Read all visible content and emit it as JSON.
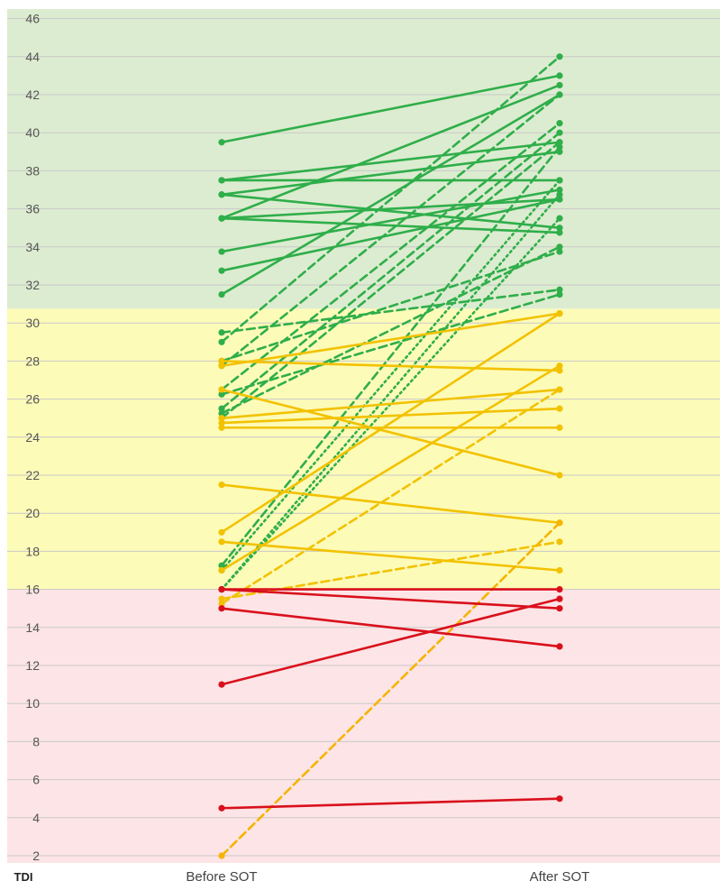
{
  "chart_data": {
    "type": "line",
    "xlabel": "TDI",
    "categories": [
      "Before SOT",
      "After SOT"
    ],
    "ylim": [
      2,
      46
    ],
    "yticks": [
      2,
      4,
      6,
      8,
      10,
      12,
      14,
      16,
      18,
      20,
      22,
      24,
      26,
      28,
      30,
      32,
      34,
      36,
      38,
      40,
      42,
      44,
      46
    ],
    "grid": true,
    "bands": [
      {
        "from": 1.5,
        "to": 16,
        "color": "#fde4e6"
      },
      {
        "from": 16,
        "to": 30.75,
        "color": "#fdfbb8"
      },
      {
        "from": 30.75,
        "to": 46.5,
        "color": "#dcecd0"
      }
    ],
    "colors": {
      "green": "#2fae4a",
      "yellow": "#f2c200",
      "red": "#d9101c",
      "orange": "#f5b400"
    },
    "series": [
      {
        "values": [
          39.5,
          43
        ],
        "color": "green",
        "style": "solid"
      },
      {
        "values": [
          37.5,
          39.5
        ],
        "color": "green",
        "style": "solid"
      },
      {
        "values": [
          37.5,
          37.5
        ],
        "color": "green",
        "style": "solid"
      },
      {
        "values": [
          36.75,
          35
        ],
        "color": "green",
        "style": "solid"
      },
      {
        "values": [
          36.75,
          39
        ],
        "color": "green",
        "style": "solid"
      },
      {
        "values": [
          35.5,
          42.5
        ],
        "color": "green",
        "style": "solid"
      },
      {
        "values": [
          35.5,
          36.5
        ],
        "color": "green",
        "style": "solid"
      },
      {
        "values": [
          35.5,
          34.75
        ],
        "color": "green",
        "style": "solid"
      },
      {
        "values": [
          33.75,
          37
        ],
        "color": "green",
        "style": "solid"
      },
      {
        "values": [
          32.75,
          36.5
        ],
        "color": "green",
        "style": "solid"
      },
      {
        "values": [
          31.5,
          42
        ],
        "color": "green",
        "style": "solid"
      },
      {
        "values": [
          29.5,
          31.75
        ],
        "color": "green",
        "style": "dashed"
      },
      {
        "values": [
          29,
          44
        ],
        "color": "green",
        "style": "dashed"
      },
      {
        "values": [
          28,
          33.75
        ],
        "color": "green",
        "style": "dashed"
      },
      {
        "values": [
          27.75,
          42
        ],
        "color": "green",
        "style": "dashed"
      },
      {
        "values": [
          26.5,
          40.5
        ],
        "color": "green",
        "style": "dashed"
      },
      {
        "values": [
          26.25,
          31.5
        ],
        "color": "green",
        "style": "dashed"
      },
      {
        "values": [
          25.5,
          40
        ],
        "color": "green",
        "style": "dashed"
      },
      {
        "values": [
          25.25,
          34
        ],
        "color": "green",
        "style": "dashed"
      },
      {
        "values": [
          25,
          39.5
        ],
        "color": "green",
        "style": "dashed"
      },
      {
        "values": [
          17.25,
          39.25
        ],
        "color": "green",
        "style": "dashed"
      },
      {
        "values": [
          17,
          37.5
        ],
        "color": "green",
        "style": "dotted"
      },
      {
        "values": [
          16,
          36.75
        ],
        "color": "green",
        "style": "dotted"
      },
      {
        "values": [
          16,
          35.5
        ],
        "color": "green",
        "style": "dotted"
      },
      {
        "values": [
          28,
          27.5
        ],
        "color": "yellow",
        "style": "solid"
      },
      {
        "values": [
          27.75,
          30.5
        ],
        "color": "yellow",
        "style": "solid"
      },
      {
        "values": [
          26.5,
          22
        ],
        "color": "yellow",
        "style": "solid"
      },
      {
        "values": [
          25,
          26.5
        ],
        "color": "yellow",
        "style": "solid"
      },
      {
        "values": [
          24.75,
          25.5
        ],
        "color": "yellow",
        "style": "solid"
      },
      {
        "values": [
          24.5,
          24.5
        ],
        "color": "yellow",
        "style": "solid"
      },
      {
        "values": [
          21.5,
          19.5
        ],
        "color": "yellow",
        "style": "solid"
      },
      {
        "values": [
          19,
          30.5
        ],
        "color": "yellow",
        "style": "solid"
      },
      {
        "values": [
          18.5,
          17
        ],
        "color": "yellow",
        "style": "solid"
      },
      {
        "values": [
          17,
          27.75
        ],
        "color": "yellow",
        "style": "solid"
      },
      {
        "values": [
          15.5,
          18.5
        ],
        "color": "yellow",
        "style": "dashed"
      },
      {
        "values": [
          15.25,
          26.5
        ],
        "color": "yellow",
        "style": "dashed"
      },
      {
        "values": [
          2,
          19.5
        ],
        "color": "orange",
        "style": "dashed"
      },
      {
        "values": [
          16,
          16
        ],
        "color": "red",
        "style": "solid"
      },
      {
        "values": [
          16,
          15
        ],
        "color": "red",
        "style": "solid"
      },
      {
        "values": [
          15,
          13
        ],
        "color": "red",
        "style": "solid"
      },
      {
        "values": [
          11,
          15.5
        ],
        "color": "red",
        "style": "solid"
      },
      {
        "values": [
          4.5,
          5
        ],
        "color": "red",
        "style": "solid"
      }
    ]
  }
}
